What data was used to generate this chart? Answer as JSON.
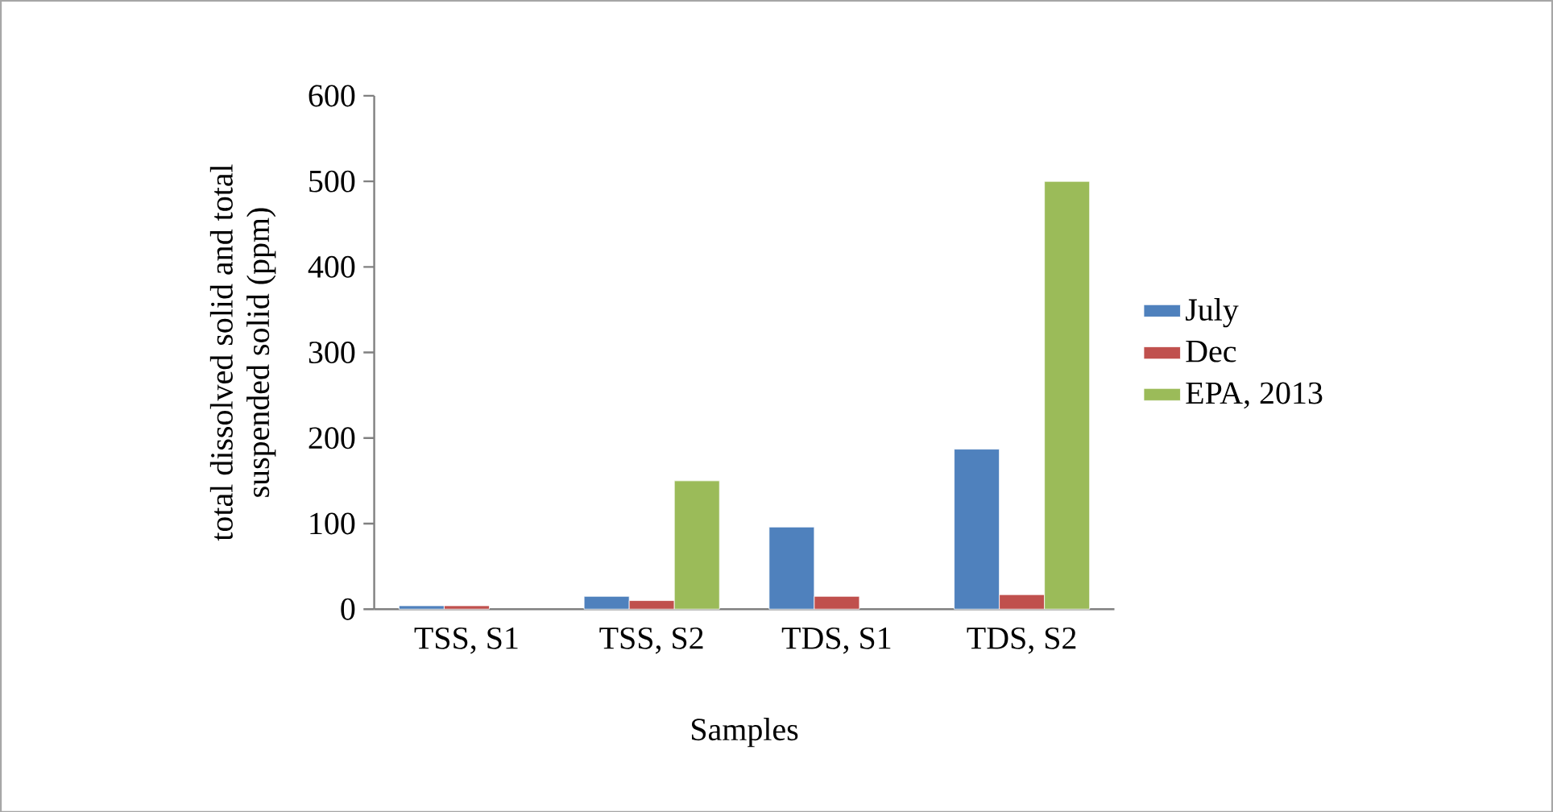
{
  "chart_data": {
    "type": "bar",
    "xlabel": "Samples",
    "ylabel": "total dissolved solid and total suspended solid  (ppm)",
    "categories": [
      "TSS, S1",
      "TSS, S2",
      "TDS, S1",
      "TDS, S2"
    ],
    "series": [
      {
        "name": "July",
        "color": "#4f81bd",
        "values": [
          4,
          15,
          96,
          187
        ]
      },
      {
        "name": "Dec",
        "color": "#c0504d",
        "values": [
          4,
          10,
          15,
          17
        ]
      },
      {
        "name": "EPA, 2013",
        "color": "#9bbb59",
        "values": [
          null,
          150,
          null,
          500
        ]
      }
    ],
    "ylim": [
      0,
      600
    ],
    "yticks": [
      0,
      100,
      200,
      300,
      400,
      500,
      600
    ],
    "grid": false,
    "legend": "right"
  }
}
